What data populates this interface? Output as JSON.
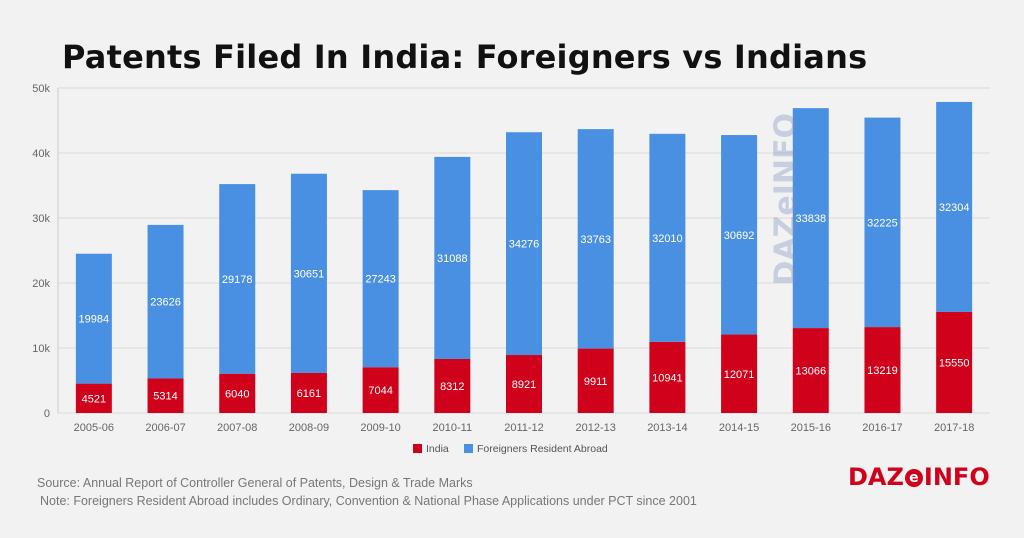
{
  "header": {
    "title": "Patents Filed In India: Foreigners vs Indians"
  },
  "footer": {
    "source": "Source: Annual  Report of Controller General of Patents, Design & Trade Marks",
    "note": "Note: Foreigners Resident Abroad includes Ordinary, Convention & National Phase Applications under PCT since 2001",
    "logo_left": "DAZ",
    "logo_e": "e",
    "logo_right": "INFO"
  },
  "watermark": "DAZeINFO",
  "colors": {
    "india": "#d0021b",
    "foreign": "#4a90e2",
    "grid": "#d9d9d9",
    "axis_text": "#666666"
  },
  "chart_data": {
    "type": "bar",
    "stacked": true,
    "categories": [
      "2005-06",
      "2006-07",
      "2007-08",
      "2008-09",
      "2009-10",
      "2010-11",
      "2011-12",
      "2012-13",
      "2013-14",
      "2014-15",
      "2015-16",
      "2016-17",
      "2017-18"
    ],
    "series": [
      {
        "name": "India",
        "values": [
          4521,
          5314,
          6040,
          6161,
          7044,
          8312,
          8921,
          9911,
          10941,
          12071,
          13066,
          13219,
          15550
        ]
      },
      {
        "name": "Foreigners Resident Abroad",
        "values": [
          19984,
          23626,
          29178,
          30651,
          27243,
          31088,
          34276,
          33763,
          32010,
          30692,
          33838,
          32225,
          32304
        ]
      }
    ],
    "ylim": [
      0,
      50000
    ],
    "yticks": [
      {
        "value": 0,
        "label": "0"
      },
      {
        "value": 10000,
        "label": "10k"
      },
      {
        "value": 20000,
        "label": "20k"
      },
      {
        "value": 30000,
        "label": "30k"
      },
      {
        "value": 40000,
        "label": "40k"
      },
      {
        "value": 50000,
        "label": "50k"
      }
    ],
    "grid": true,
    "legend_position": "bottom-center"
  }
}
